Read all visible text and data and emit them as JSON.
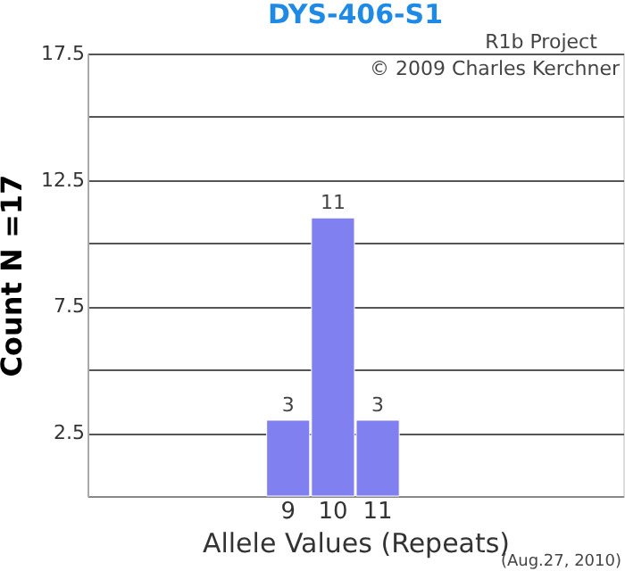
{
  "chart_data": {
    "type": "bar",
    "title": "DYS-406-S1",
    "xlabel": "Allele Values (Repeats)",
    "ylabel": "Count N =17",
    "categories": [
      null,
      null,
      null,
      null,
      "9",
      "10",
      "11",
      null,
      null,
      null,
      null,
      null
    ],
    "values": [
      null,
      null,
      null,
      null,
      3,
      11,
      3,
      null,
      null,
      null,
      null,
      null
    ],
    "color": "#8080f0",
    "data_labels": true,
    "ylim": [
      0,
      17.5
    ],
    "yticks": [
      {
        "value": 0,
        "label": null
      },
      2.5,
      {
        "value": 5,
        "label": null
      },
      7.5,
      {
        "value": 10,
        "label": null
      },
      12.5,
      {
        "value": 15,
        "label": null
      },
      17.5
    ],
    "grid": "y",
    "annotations": [
      "R1b Project",
      "© 2009 Charles Kerchner",
      "(Aug.27, 2010)"
    ]
  }
}
